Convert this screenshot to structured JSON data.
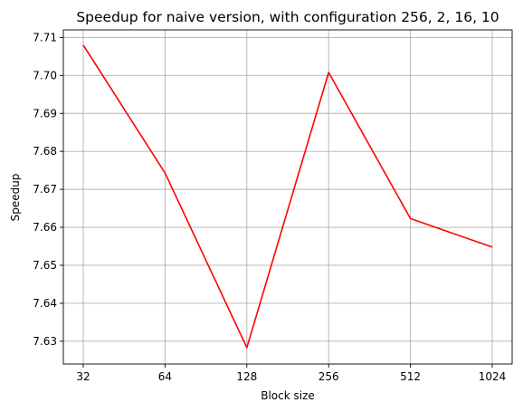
{
  "chart_data": {
    "type": "line",
    "title": "Speedup for naive version, with configuration 256, 2, 16, 10",
    "xlabel": "Block size",
    "ylabel": "Speedup",
    "categories": [
      "32",
      "64",
      "128",
      "256",
      "512",
      "1024"
    ],
    "series": [
      {
        "values": [
          7.708,
          7.6743,
          7.6283,
          7.7008,
          7.6623,
          7.6548
        ],
        "color": "#ff0000"
      }
    ],
    "yticks": [
      7.63,
      7.64,
      7.65,
      7.66,
      7.67,
      7.68,
      7.69,
      7.7,
      7.71
    ],
    "ytick_labels": [
      "7.63",
      "7.64",
      "7.65",
      "7.66",
      "7.67",
      "7.68",
      "7.69",
      "7.70",
      "7.71"
    ],
    "ylim": [
      7.624,
      7.712
    ],
    "grid": true,
    "legend": false
  }
}
